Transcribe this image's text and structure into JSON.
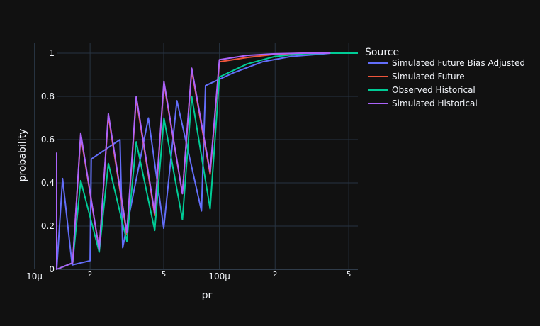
{
  "chart_data": {
    "type": "line",
    "xlabel": "pr",
    "ylabel": "probability",
    "xscale": "log",
    "xlim": [
      1.32e-05,
      0.00056
    ],
    "ylim": [
      0,
      1
    ],
    "grid": true,
    "legend": {
      "title": "Source",
      "position": "right"
    },
    "x_major_ticks": [
      {
        "value": 1e-05,
        "label": "10μ"
      },
      {
        "value": 0.0001,
        "label": "100μ"
      }
    ],
    "x_minor_ticks": [
      {
        "value": 2e-05,
        "label": "2"
      },
      {
        "value": 5e-05,
        "label": "5"
      },
      {
        "value": 0.0002,
        "label": "2"
      },
      {
        "value": 0.0005,
        "label": "5"
      }
    ],
    "y_ticks": [
      {
        "value": 0,
        "label": "0"
      },
      {
        "value": 0.2,
        "label": "0.2"
      },
      {
        "value": 0.4,
        "label": "0.4"
      },
      {
        "value": 0.6,
        "label": "0.6"
      },
      {
        "value": 0.8,
        "label": "0.8"
      },
      {
        "value": 1,
        "label": "1"
      }
    ],
    "series": [
      {
        "name": "Simulated Future Bias Adjusted",
        "color": "#636efa",
        "x": [
          1.32e-05,
          1.6e-05,
          2e-05,
          3e-05,
          5e-05,
          8e-05,
          1e-05,
          1.42e-05,
          2.03e-05,
          2.9e-05,
          4.13e-05,
          5.89e-05,
          8.41e-05,
          0.00012,
          0.000171,
          0.000244,
          0.000348,
          0.000398,
          0.00056
        ],
        "y": [
          0,
          0.02,
          0.04,
          0.1,
          0.19,
          0.27,
          0.32,
          0.42,
          0.51,
          0.6,
          0.7,
          0.78,
          0.85,
          0.91,
          0.96,
          0.985,
          0.995,
          1,
          1
        ]
      },
      {
        "name": "Simulated Future",
        "color": "#ef553b",
        "x": [
          1.32e-05,
          1.61e-05,
          2.24e-05,
          3.16e-05,
          4.47e-05,
          6.31e-05,
          8.91e-05,
          1.26e-05,
          1.78e-05,
          2.51e-05,
          3.55e-05,
          5.01e-05,
          7.08e-05,
          0.0001,
          0.000141,
          0.0002,
          0.000282,
          0.000398
        ],
        "y": [
          0,
          0.03,
          0.09,
          0.16,
          0.25,
          0.35,
          0.44,
          0.53,
          0.62,
          0.71,
          0.79,
          0.86,
          0.92,
          0.96,
          0.98,
          0.995,
          1,
          1
        ]
      },
      {
        "name": "Observed Historical",
        "color": "#00cc96",
        "x": [
          1.32e-05,
          1.61e-05,
          2.24e-05,
          3.16e-05,
          4.47e-05,
          6.31e-05,
          8.91e-05,
          1.26e-05,
          1.78e-05,
          2.51e-05,
          3.55e-05,
          5.01e-05,
          7.08e-05,
          0.0001,
          0.000141,
          0.0002,
          0.000282,
          0.000398,
          0.00056
        ],
        "y": [
          0,
          0.03,
          0.08,
          0.13,
          0.18,
          0.23,
          0.28,
          0.34,
          0.41,
          0.49,
          0.59,
          0.7,
          0.8,
          0.89,
          0.95,
          0.985,
          0.997,
          1,
          1
        ]
      },
      {
        "name": "Simulated Historical",
        "color": "#ab63fa",
        "x": [
          1.32e-05,
          1.61e-05,
          2.24e-05,
          3.16e-05,
          4.47e-05,
          6.31e-05,
          8.91e-05,
          1.26e-05,
          1.78e-05,
          2.51e-05,
          3.55e-05,
          5.01e-05,
          7.08e-05,
          0.0001,
          0.000141,
          0.0002,
          0.000282,
          0.000398
        ],
        "y": [
          0,
          0.03,
          0.09,
          0.17,
          0.26,
          0.35,
          0.45,
          0.54,
          0.63,
          0.72,
          0.8,
          0.87,
          0.93,
          0.97,
          0.99,
          0.997,
          1,
          1
        ]
      }
    ]
  }
}
